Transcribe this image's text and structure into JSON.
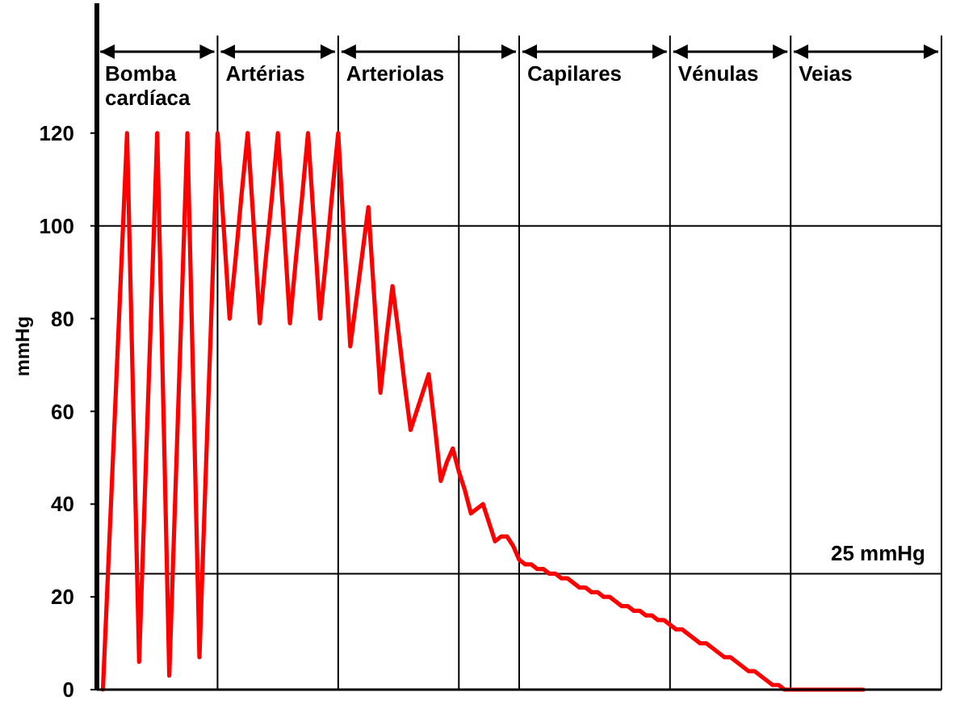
{
  "chart_data": {
    "type": "line",
    "ylabel": "mmHg",
    "ylim": [
      0,
      148
    ],
    "yticks": [
      0,
      20,
      40,
      60,
      80,
      100,
      120
    ],
    "marker": "none",
    "line_style": "solid",
    "categories": [
      null,
      null,
      null,
      null,
      null,
      null,
      null,
      null,
      null,
      null,
      null,
      null,
      null,
      null,
      null,
      null,
      null,
      null,
      null,
      null,
      null,
      null,
      null,
      null,
      null,
      null,
      null,
      null,
      null,
      null,
      null,
      null,
      null,
      null,
      null,
      null,
      null,
      null,
      null,
      null,
      null,
      null,
      null,
      null,
      null,
      null,
      null,
      null,
      null,
      null,
      null,
      null,
      null,
      null,
      null,
      null,
      null,
      null,
      null,
      null,
      null,
      null,
      null,
      null,
      null,
      null,
      null,
      null,
      null,
      null,
      null,
      null,
      null,
      null,
      null,
      null,
      null,
      null,
      null,
      null,
      null,
      null,
      null,
      null,
      null,
      null,
      null,
      null,
      null,
      null,
      null,
      null,
      null,
      null,
      null,
      null,
      null,
      null,
      null,
      null,
      null,
      null,
      null,
      null,
      null,
      null,
      null,
      null,
      null,
      null,
      null,
      null,
      null,
      null,
      null,
      null,
      null,
      null,
      null,
      null,
      null,
      null,
      null,
      null,
      null,
      null,
      null,
      null,
      null,
      null,
      null,
      null,
      null,
      null,
      null,
      null,
      null,
      null,
      null,
      null,
      null
    ],
    "series": [
      {
        "color": "#ff0000",
        "values": [
          null,
          0,
          30,
          60,
          90,
          120,
          63,
          6,
          44,
          82,
          120,
          62,
          3,
          42,
          81,
          120,
          64,
          7,
          45,
          82,
          120,
          100,
          80,
          93,
          107,
          120,
          100,
          79,
          93,
          106,
          120,
          100,
          79,
          93,
          106,
          120,
          100,
          80,
          93,
          107,
          120,
          97,
          74,
          84,
          94,
          104,
          84,
          64,
          76,
          87,
          77,
          66,
          56,
          60,
          64,
          68,
          57,
          45,
          49,
          52,
          47,
          43,
          38,
          39,
          40,
          36,
          32,
          33,
          33,
          31,
          28,
          27,
          27,
          26,
          26,
          25,
          25,
          24,
          24,
          23,
          22,
          22,
          21,
          21,
          20,
          20,
          19,
          18,
          18,
          17,
          17,
          16,
          16,
          15,
          15,
          14,
          13,
          13,
          12,
          11,
          10,
          10,
          9,
          8,
          7,
          7,
          6,
          5,
          4,
          4,
          3,
          2,
          1,
          1,
          0,
          0,
          0,
          0,
          0,
          0,
          0,
          0,
          0,
          0,
          0,
          0,
          0,
          0,
          null,
          null,
          null,
          null,
          null,
          null,
          null,
          null,
          null,
          null,
          null,
          null,
          null
        ]
      }
    ],
    "ref_lines": [
      {
        "axis": "y",
        "value": 100
      },
      {
        "axis": "y",
        "value": 25,
        "label": "25 mmHg"
      }
    ],
    "annotations": [
      "Bomba cardíaca",
      "Artérias",
      "Arteriolas",
      "Capilares",
      "Vénulas",
      "Veias"
    ]
  }
}
